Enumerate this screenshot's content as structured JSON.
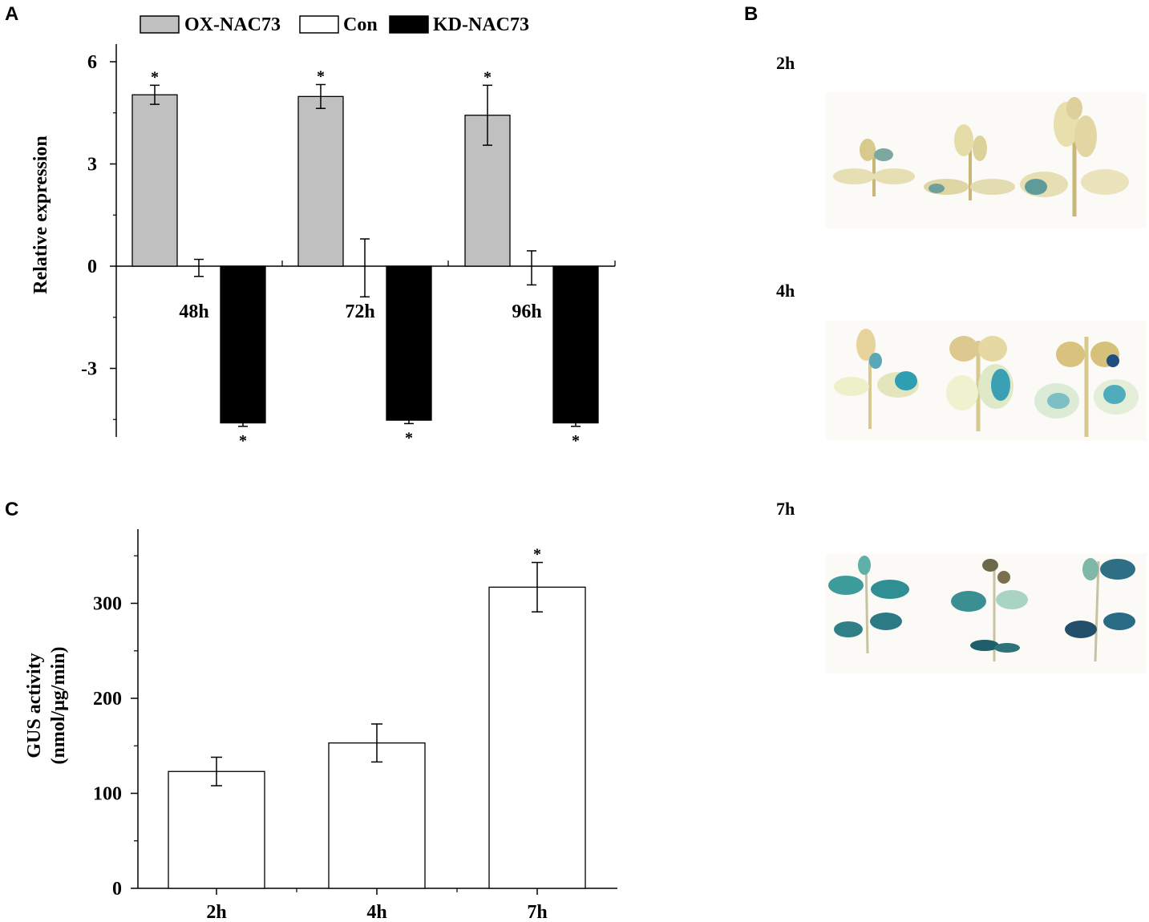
{
  "panels": {
    "a": "A",
    "b": "B",
    "c": "C"
  },
  "chart_data": [
    {
      "type": "bar",
      "panel": "A",
      "ylabel": "Relative expression",
      "xlabel": "",
      "ylim": [
        -5,
        6
      ],
      "yticks": [
        6,
        3,
        0,
        -3
      ],
      "ytick_labels": [
        "6",
        "3",
        "0",
        "-3"
      ],
      "categories": [
        "48h",
        "72h",
        "96h"
      ],
      "legend_position": "top",
      "series": [
        {
          "name": "OX-NAC73",
          "legend_label": "OX-NAC73",
          "color": "#c0c0c0",
          "values": [
            5.03,
            4.98,
            4.43
          ],
          "errors": [
            0.28,
            0.35,
            0.88
          ],
          "significance": [
            "*",
            "*",
            "*"
          ]
        },
        {
          "name": "Con",
          "legend_label": "Con",
          "color": "#ffffff",
          "values": [
            -0.05,
            -0.05,
            -0.05
          ],
          "errors": [
            0.25,
            0.85,
            0.5
          ],
          "significance": [
            "",
            "",
            ""
          ]
        },
        {
          "name": "KD-NAC73",
          "legend_label": "KD-NAC73",
          "color": "#000000",
          "values": [
            -4.6,
            -4.52,
            -4.6
          ],
          "errors": [
            0.1,
            0.1,
            0.1
          ],
          "significance": [
            "*",
            "*",
            "*"
          ]
        }
      ]
    },
    {
      "type": "bar",
      "panel": "C",
      "ylabel_line1": "GUS activity",
      "ylabel_line2": "(nmol/μg/min)",
      "xlabel": "",
      "ylim": [
        0,
        380
      ],
      "yticks": [
        0,
        100,
        200,
        300
      ],
      "ytick_labels": [
        "0",
        "100",
        "200",
        "300"
      ],
      "categories": [
        "2h",
        "4h",
        "7h"
      ],
      "values": [
        123,
        153,
        317
      ],
      "errors": [
        15,
        20,
        26
      ],
      "significance": [
        "",
        "",
        "*"
      ],
      "color": "#ffffff"
    }
  ],
  "gus_staining": {
    "rows": [
      {
        "label": "2h",
        "stain_level": "low"
      },
      {
        "label": "4h",
        "stain_level": "medium"
      },
      {
        "label": "7h",
        "stain_level": "high"
      }
    ],
    "plants_per_row": 3
  }
}
